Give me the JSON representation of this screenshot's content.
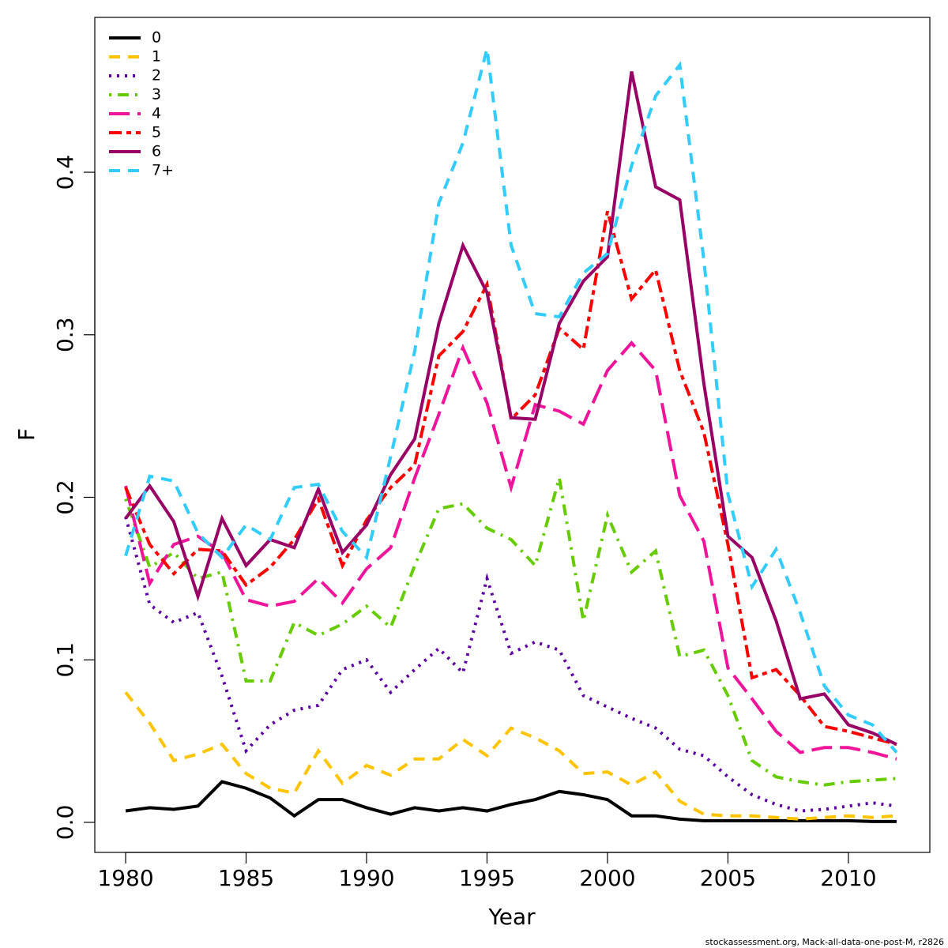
{
  "chart_data": {
    "type": "line",
    "xlabel": "Year",
    "ylabel": "F",
    "caption": "stockassessment.org, Mack-all-data-one-post-M, r2826",
    "x": [
      1980,
      1981,
      1982,
      1983,
      1984,
      1985,
      1986,
      1987,
      1988,
      1989,
      1990,
      1991,
      1992,
      1993,
      1994,
      1995,
      1996,
      1997,
      1998,
      1999,
      2000,
      2001,
      2002,
      2003,
      2004,
      2005,
      2006,
      2007,
      2008,
      2009,
      2010,
      2011,
      2012
    ],
    "xlim": [
      1978.72,
      2013.38
    ],
    "xticks": [
      1980,
      1985,
      1990,
      1995,
      2000,
      2005,
      2010
    ],
    "ylim": [
      -0.0185,
      0.4953
    ],
    "yticks": [
      {
        "value": 0,
        "label": "0.0"
      },
      0.1,
      0.2,
      0.3,
      0.4
    ],
    "legend": "top-left",
    "series": [
      {
        "name": "0",
        "color": "#000000",
        "line_style": "solid",
        "values": [
          0.007,
          0.009,
          0.008,
          0.01,
          0.025,
          0.021,
          0.015,
          0.004,
          0.014,
          0.014,
          0.009,
          0.005,
          0.009,
          0.007,
          0.009,
          0.007,
          0.011,
          0.014,
          0.019,
          0.017,
          0.014,
          0.004,
          0.004,
          0.002,
          0.001,
          0.001,
          0.001,
          0.001,
          0.001,
          0.001,
          0.001,
          0.0005,
          0.0005
        ]
      },
      {
        "name": "1",
        "color": "#ffc400",
        "line_style": "dashed",
        "values": [
          0.08,
          0.061,
          0.038,
          0.042,
          0.048,
          0.03,
          0.021,
          0.018,
          0.044,
          0.024,
          0.035,
          0.029,
          0.039,
          0.039,
          0.051,
          0.041,
          0.058,
          0.052,
          0.044,
          0.03,
          0.031,
          0.023,
          0.031,
          0.013,
          0.005,
          0.004,
          0.004,
          0.003,
          0.002,
          0.003,
          0.004,
          0.003,
          0.004
        ]
      },
      {
        "name": "2",
        "color": "#5c00a3",
        "line_style": "dotted",
        "values": [
          0.188,
          0.134,
          0.123,
          0.129,
          0.09,
          0.044,
          0.06,
          0.069,
          0.072,
          0.094,
          0.1,
          0.08,
          0.094,
          0.107,
          0.092,
          0.15,
          0.104,
          0.111,
          0.106,
          0.078,
          0.071,
          0.064,
          0.058,
          0.045,
          0.041,
          0.028,
          0.017,
          0.011,
          0.007,
          0.008,
          0.01,
          0.012,
          0.01
        ]
      },
      {
        "name": "3",
        "color": "#66cc00",
        "line_style": "dotdash",
        "values": [
          0.199,
          0.157,
          0.166,
          0.15,
          0.154,
          0.087,
          0.087,
          0.123,
          0.115,
          0.122,
          0.133,
          0.12,
          0.158,
          0.193,
          0.196,
          0.181,
          0.174,
          0.158,
          0.212,
          0.124,
          0.189,
          0.154,
          0.167,
          0.102,
          0.106,
          0.078,
          0.038,
          0.028,
          0.025,
          0.023,
          0.025,
          0.026,
          0.027
        ]
      },
      {
        "name": "4",
        "color": "#f0149b",
        "line_style": "longdash",
        "values": [
          0.207,
          0.147,
          0.171,
          0.176,
          0.166,
          0.137,
          0.133,
          0.136,
          0.15,
          0.135,
          0.156,
          0.169,
          0.212,
          0.251,
          0.292,
          0.258,
          0.206,
          0.257,
          0.253,
          0.245,
          0.278,
          0.295,
          0.278,
          0.201,
          0.173,
          0.095,
          0.076,
          0.056,
          0.043,
          0.046,
          0.046,
          0.043,
          0.039
        ]
      },
      {
        "name": "5",
        "color": "#ff0000",
        "line_style": "twodash",
        "values": [
          0.206,
          0.171,
          0.153,
          0.168,
          0.167,
          0.146,
          0.157,
          0.174,
          0.199,
          0.158,
          0.186,
          0.206,
          0.22,
          0.287,
          0.302,
          0.331,
          0.248,
          0.263,
          0.304,
          0.291,
          0.376,
          0.322,
          0.34,
          0.278,
          0.24,
          0.171,
          0.089,
          0.094,
          0.078,
          0.059,
          0.056,
          0.052,
          0.048
        ]
      },
      {
        "name": "6",
        "color": "#990066",
        "line_style": "solid",
        "values": [
          0.187,
          0.207,
          0.185,
          0.139,
          0.187,
          0.158,
          0.174,
          0.169,
          0.205,
          0.166,
          0.183,
          0.214,
          0.236,
          0.307,
          0.355,
          0.326,
          0.249,
          0.248,
          0.307,
          0.333,
          0.348,
          0.462,
          0.391,
          0.383,
          0.27,
          0.176,
          0.163,
          0.124,
          0.076,
          0.079,
          0.06,
          0.055,
          0.048
        ]
      },
      {
        "name": "7+",
        "color": "#33ccff",
        "line_style": "dashed",
        "values": [
          0.164,
          0.213,
          0.21,
          0.178,
          0.163,
          0.183,
          0.174,
          0.206,
          0.208,
          0.179,
          0.163,
          0.225,
          0.29,
          0.381,
          0.418,
          0.476,
          0.355,
          0.313,
          0.311,
          0.338,
          0.35,
          0.404,
          0.447,
          0.466,
          0.346,
          0.202,
          0.145,
          0.168,
          0.129,
          0.084,
          0.066,
          0.06,
          0.043
        ]
      }
    ]
  }
}
